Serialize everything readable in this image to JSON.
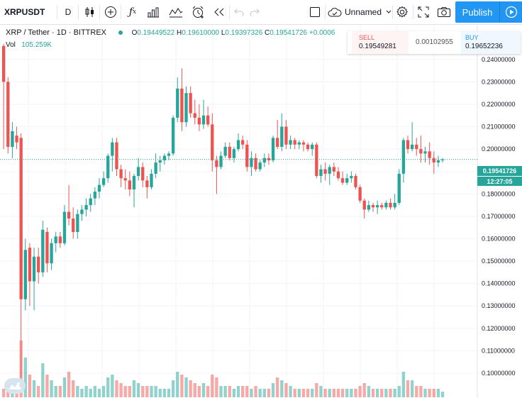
{
  "toolbar": {
    "symbol": "XRPUSDT",
    "interval": "D",
    "layout_name": "Unnamed",
    "publish_label": "Publish",
    "icons": [
      "candles-icon",
      "add-indicator-icon",
      "fx-icon",
      "compare-icon",
      "indicators-icon",
      "alert-icon",
      "replay-icon",
      "undo-icon",
      "redo-icon",
      "fullscreen-icon",
      "unnamed-cloud-icon",
      "settings-icon",
      "camera-icon"
    ]
  },
  "legend": {
    "title": "XRP / Tether · 1D · BITTREX",
    "o_label": "O",
    "o": "0.19449522",
    "h_label": "H",
    "h": "0.19610000",
    "l_label": "L",
    "l": "0.19397326",
    "c_label": "C",
    "c": "0.19541726",
    "change": "+0.0006",
    "vol_label": "Vol",
    "vol": "105.259K"
  },
  "trade": {
    "sell_label": "SELL",
    "sell_price": "0.19549281",
    "spread": "0.00102955",
    "buy_label": "BUY",
    "buy_price": "0.19652236"
  },
  "price_axis": {
    "last_price": "0.19541726",
    "countdown": "12:27:05"
  },
  "colors": {
    "up": "#26a69a",
    "down": "#ef5350",
    "accent": "#2196f3"
  },
  "chart_data": {
    "type": "candlestick",
    "y_ticks": [
      0.24,
      0.23,
      0.22,
      0.21,
      0.2,
      0.19,
      0.18,
      0.17,
      0.16,
      0.15,
      0.14,
      0.13,
      0.12,
      0.11,
      0.1
    ],
    "y_tick_labels": [
      "0.24000000",
      "0.23000000",
      "0.22000000",
      "0.21000000",
      "0.20000000",
      "0.19000000",
      "0.18000000",
      "0.17000000",
      "0.16000000",
      "0.15000000",
      "0.14000000",
      "0.13000000",
      "0.12000000",
      "0.11000000",
      "0.10000000"
    ],
    "ylim": [
      0.0962,
      0.2545
    ],
    "grid": true,
    "candles": [
      {
        "o": 0.246,
        "h": 0.247,
        "l": 0.2,
        "c": 0.23
      },
      {
        "o": 0.23,
        "h": 0.232,
        "l": 0.198,
        "c": 0.201
      },
      {
        "o": 0.201,
        "h": 0.212,
        "l": 0.196,
        "c": 0.208
      },
      {
        "o": 0.206,
        "h": 0.21,
        "l": 0.2,
        "c": 0.203
      },
      {
        "o": 0.205,
        "h": 0.207,
        "l": 0.098,
        "c": 0.133
      },
      {
        "o": 0.133,
        "h": 0.16,
        "l": 0.128,
        "c": 0.155
      },
      {
        "o": 0.156,
        "h": 0.158,
        "l": 0.13,
        "c": 0.141
      },
      {
        "o": 0.141,
        "h": 0.156,
        "l": 0.128,
        "c": 0.152
      },
      {
        "o": 0.152,
        "h": 0.156,
        "l": 0.14,
        "c": 0.145
      },
      {
        "o": 0.145,
        "h": 0.168,
        "l": 0.143,
        "c": 0.164
      },
      {
        "o": 0.163,
        "h": 0.165,
        "l": 0.145,
        "c": 0.149
      },
      {
        "o": 0.149,
        "h": 0.16,
        "l": 0.146,
        "c": 0.158
      },
      {
        "o": 0.158,
        "h": 0.163,
        "l": 0.154,
        "c": 0.161
      },
      {
        "o": 0.161,
        "h": 0.163,
        "l": 0.156,
        "c": 0.158
      },
      {
        "o": 0.158,
        "h": 0.175,
        "l": 0.157,
        "c": 0.172
      },
      {
        "o": 0.172,
        "h": 0.184,
        "l": 0.166,
        "c": 0.169
      },
      {
        "o": 0.169,
        "h": 0.174,
        "l": 0.16,
        "c": 0.163
      },
      {
        "o": 0.163,
        "h": 0.173,
        "l": 0.16,
        "c": 0.171
      },
      {
        "o": 0.171,
        "h": 0.175,
        "l": 0.168,
        "c": 0.173
      },
      {
        "o": 0.173,
        "h": 0.178,
        "l": 0.17,
        "c": 0.175
      },
      {
        "o": 0.175,
        "h": 0.18,
        "l": 0.172,
        "c": 0.178
      },
      {
        "o": 0.178,
        "h": 0.183,
        "l": 0.175,
        "c": 0.181
      },
      {
        "o": 0.181,
        "h": 0.187,
        "l": 0.178,
        "c": 0.184
      },
      {
        "o": 0.184,
        "h": 0.19,
        "l": 0.183,
        "c": 0.187
      },
      {
        "o": 0.187,
        "h": 0.198,
        "l": 0.185,
        "c": 0.197
      },
      {
        "o": 0.197,
        "h": 0.205,
        "l": 0.19,
        "c": 0.203
      },
      {
        "o": 0.203,
        "h": 0.205,
        "l": 0.188,
        "c": 0.191
      },
      {
        "o": 0.191,
        "h": 0.193,
        "l": 0.183,
        "c": 0.187
      },
      {
        "o": 0.187,
        "h": 0.191,
        "l": 0.182,
        "c": 0.186
      },
      {
        "o": 0.186,
        "h": 0.19,
        "l": 0.179,
        "c": 0.182
      },
      {
        "o": 0.182,
        "h": 0.189,
        "l": 0.174,
        "c": 0.188
      },
      {
        "o": 0.188,
        "h": 0.196,
        "l": 0.186,
        "c": 0.192
      },
      {
        "o": 0.192,
        "h": 0.194,
        "l": 0.183,
        "c": 0.186
      },
      {
        "o": 0.186,
        "h": 0.188,
        "l": 0.178,
        "c": 0.183
      },
      {
        "o": 0.183,
        "h": 0.191,
        "l": 0.182,
        "c": 0.189
      },
      {
        "o": 0.189,
        "h": 0.198,
        "l": 0.187,
        "c": 0.194
      },
      {
        "o": 0.194,
        "h": 0.197,
        "l": 0.19,
        "c": 0.195
      },
      {
        "o": 0.195,
        "h": 0.198,
        "l": 0.193,
        "c": 0.197
      },
      {
        "o": 0.197,
        "h": 0.199,
        "l": 0.195,
        "c": 0.198
      },
      {
        "o": 0.198,
        "h": 0.215,
        "l": 0.197,
        "c": 0.214
      },
      {
        "o": 0.214,
        "h": 0.232,
        "l": 0.212,
        "c": 0.227
      },
      {
        "o": 0.227,
        "h": 0.236,
        "l": 0.208,
        "c": 0.212
      },
      {
        "o": 0.212,
        "h": 0.228,
        "l": 0.21,
        "c": 0.225
      },
      {
        "o": 0.225,
        "h": 0.228,
        "l": 0.214,
        "c": 0.216
      },
      {
        "o": 0.216,
        "h": 0.222,
        "l": 0.211,
        "c": 0.214
      },
      {
        "o": 0.214,
        "h": 0.22,
        "l": 0.208,
        "c": 0.211
      },
      {
        "o": 0.211,
        "h": 0.222,
        "l": 0.209,
        "c": 0.215
      },
      {
        "o": 0.215,
        "h": 0.219,
        "l": 0.21,
        "c": 0.211
      },
      {
        "o": 0.211,
        "h": 0.216,
        "l": 0.19,
        "c": 0.195
      },
      {
        "o": 0.195,
        "h": 0.197,
        "l": 0.18,
        "c": 0.192
      },
      {
        "o": 0.192,
        "h": 0.199,
        "l": 0.191,
        "c": 0.197
      },
      {
        "o": 0.197,
        "h": 0.203,
        "l": 0.196,
        "c": 0.201
      },
      {
        "o": 0.201,
        "h": 0.203,
        "l": 0.195,
        "c": 0.196
      },
      {
        "o": 0.196,
        "h": 0.201,
        "l": 0.194,
        "c": 0.2
      },
      {
        "o": 0.2,
        "h": 0.207,
        "l": 0.199,
        "c": 0.204
      },
      {
        "o": 0.204,
        "h": 0.206,
        "l": 0.2,
        "c": 0.202
      },
      {
        "o": 0.202,
        "h": 0.204,
        "l": 0.19,
        "c": 0.192
      },
      {
        "o": 0.192,
        "h": 0.199,
        "l": 0.188,
        "c": 0.196
      },
      {
        "o": 0.196,
        "h": 0.198,
        "l": 0.19,
        "c": 0.191
      },
      {
        "o": 0.191,
        "h": 0.195,
        "l": 0.19,
        "c": 0.194
      },
      {
        "o": 0.194,
        "h": 0.198,
        "l": 0.192,
        "c": 0.196
      },
      {
        "o": 0.196,
        "h": 0.198,
        "l": 0.193,
        "c": 0.195
      },
      {
        "o": 0.195,
        "h": 0.206,
        "l": 0.194,
        "c": 0.205
      },
      {
        "o": 0.205,
        "h": 0.213,
        "l": 0.2,
        "c": 0.201
      },
      {
        "o": 0.201,
        "h": 0.216,
        "l": 0.199,
        "c": 0.21
      },
      {
        "o": 0.21,
        "h": 0.213,
        "l": 0.2,
        "c": 0.202
      },
      {
        "o": 0.202,
        "h": 0.206,
        "l": 0.2,
        "c": 0.204
      },
      {
        "o": 0.204,
        "h": 0.205,
        "l": 0.2,
        "c": 0.202
      },
      {
        "o": 0.202,
        "h": 0.204,
        "l": 0.2,
        "c": 0.203
      },
      {
        "o": 0.203,
        "h": 0.204,
        "l": 0.199,
        "c": 0.202
      },
      {
        "o": 0.202,
        "h": 0.203,
        "l": 0.199,
        "c": 0.2
      },
      {
        "o": 0.2,
        "h": 0.203,
        "l": 0.197,
        "c": 0.202
      },
      {
        "o": 0.202,
        "h": 0.203,
        "l": 0.187,
        "c": 0.188
      },
      {
        "o": 0.188,
        "h": 0.193,
        "l": 0.185,
        "c": 0.191
      },
      {
        "o": 0.191,
        "h": 0.194,
        "l": 0.186,
        "c": 0.189
      },
      {
        "o": 0.189,
        "h": 0.193,
        "l": 0.184,
        "c": 0.192
      },
      {
        "o": 0.192,
        "h": 0.194,
        "l": 0.188,
        "c": 0.19
      },
      {
        "o": 0.19,
        "h": 0.192,
        "l": 0.186,
        "c": 0.187
      },
      {
        "o": 0.187,
        "h": 0.19,
        "l": 0.184,
        "c": 0.185
      },
      {
        "o": 0.185,
        "h": 0.189,
        "l": 0.184,
        "c": 0.187
      },
      {
        "o": 0.187,
        "h": 0.19,
        "l": 0.185,
        "c": 0.188
      },
      {
        "o": 0.188,
        "h": 0.189,
        "l": 0.182,
        "c": 0.183
      },
      {
        "o": 0.183,
        "h": 0.184,
        "l": 0.176,
        "c": 0.177
      },
      {
        "o": 0.177,
        "h": 0.178,
        "l": 0.169,
        "c": 0.173
      },
      {
        "o": 0.173,
        "h": 0.177,
        "l": 0.172,
        "c": 0.175
      },
      {
        "o": 0.175,
        "h": 0.176,
        "l": 0.172,
        "c": 0.174
      },
      {
        "o": 0.174,
        "h": 0.177,
        "l": 0.171,
        "c": 0.175
      },
      {
        "o": 0.175,
        "h": 0.176,
        "l": 0.173,
        "c": 0.174
      },
      {
        "o": 0.174,
        "h": 0.177,
        "l": 0.173,
        "c": 0.176
      },
      {
        "o": 0.176,
        "h": 0.178,
        "l": 0.173,
        "c": 0.174
      },
      {
        "o": 0.174,
        "h": 0.18,
        "l": 0.173,
        "c": 0.176
      },
      {
        "o": 0.176,
        "h": 0.191,
        "l": 0.175,
        "c": 0.189
      },
      {
        "o": 0.189,
        "h": 0.205,
        "l": 0.185,
        "c": 0.204
      },
      {
        "o": 0.204,
        "h": 0.206,
        "l": 0.198,
        "c": 0.2
      },
      {
        "o": 0.2,
        "h": 0.212,
        "l": 0.199,
        "c": 0.202
      },
      {
        "o": 0.202,
        "h": 0.205,
        "l": 0.197,
        "c": 0.2
      },
      {
        "o": 0.2,
        "h": 0.206,
        "l": 0.194,
        "c": 0.198
      },
      {
        "o": 0.198,
        "h": 0.201,
        "l": 0.194,
        "c": 0.199
      },
      {
        "o": 0.199,
        "h": 0.203,
        "l": 0.193,
        "c": 0.196
      },
      {
        "o": 0.196,
        "h": 0.199,
        "l": 0.189,
        "c": 0.194
      },
      {
        "o": 0.194,
        "h": 0.197,
        "l": 0.192,
        "c": 0.195
      },
      {
        "o": 0.195,
        "h": 0.196,
        "l": 0.194,
        "c": 0.1954
      }
    ],
    "volume_relative": [
      0.15,
      0.2,
      0.3,
      0.25,
      1.0,
      0.7,
      0.4,
      0.3,
      0.2,
      0.6,
      0.4,
      0.3,
      0.2,
      0.2,
      0.35,
      0.45,
      0.3,
      0.2,
      0.15,
      0.2,
      0.15,
      0.2,
      0.15,
      0.2,
      0.35,
      0.4,
      0.3,
      0.25,
      0.2,
      0.2,
      0.3,
      0.25,
      0.2,
      0.2,
      0.2,
      0.2,
      0.15,
      0.15,
      0.15,
      0.3,
      0.45,
      0.4,
      0.35,
      0.3,
      0.25,
      0.2,
      0.25,
      0.2,
      0.4,
      0.35,
      0.2,
      0.2,
      0.2,
      0.15,
      0.2,
      0.2,
      0.2,
      0.15,
      0.2,
      0.15,
      0.15,
      0.15,
      0.25,
      0.35,
      0.3,
      0.25,
      0.2,
      0.15,
      0.15,
      0.15,
      0.15,
      0.15,
      0.25,
      0.2,
      0.15,
      0.15,
      0.15,
      0.15,
      0.15,
      0.15,
      0.15,
      0.15,
      0.2,
      0.25,
      0.2,
      0.15,
      0.15,
      0.15,
      0.15,
      0.15,
      0.15,
      0.2,
      0.45,
      0.3,
      0.3,
      0.2,
      0.2,
      0.15,
      0.15,
      0.15,
      0.15,
      0.1
    ]
  }
}
